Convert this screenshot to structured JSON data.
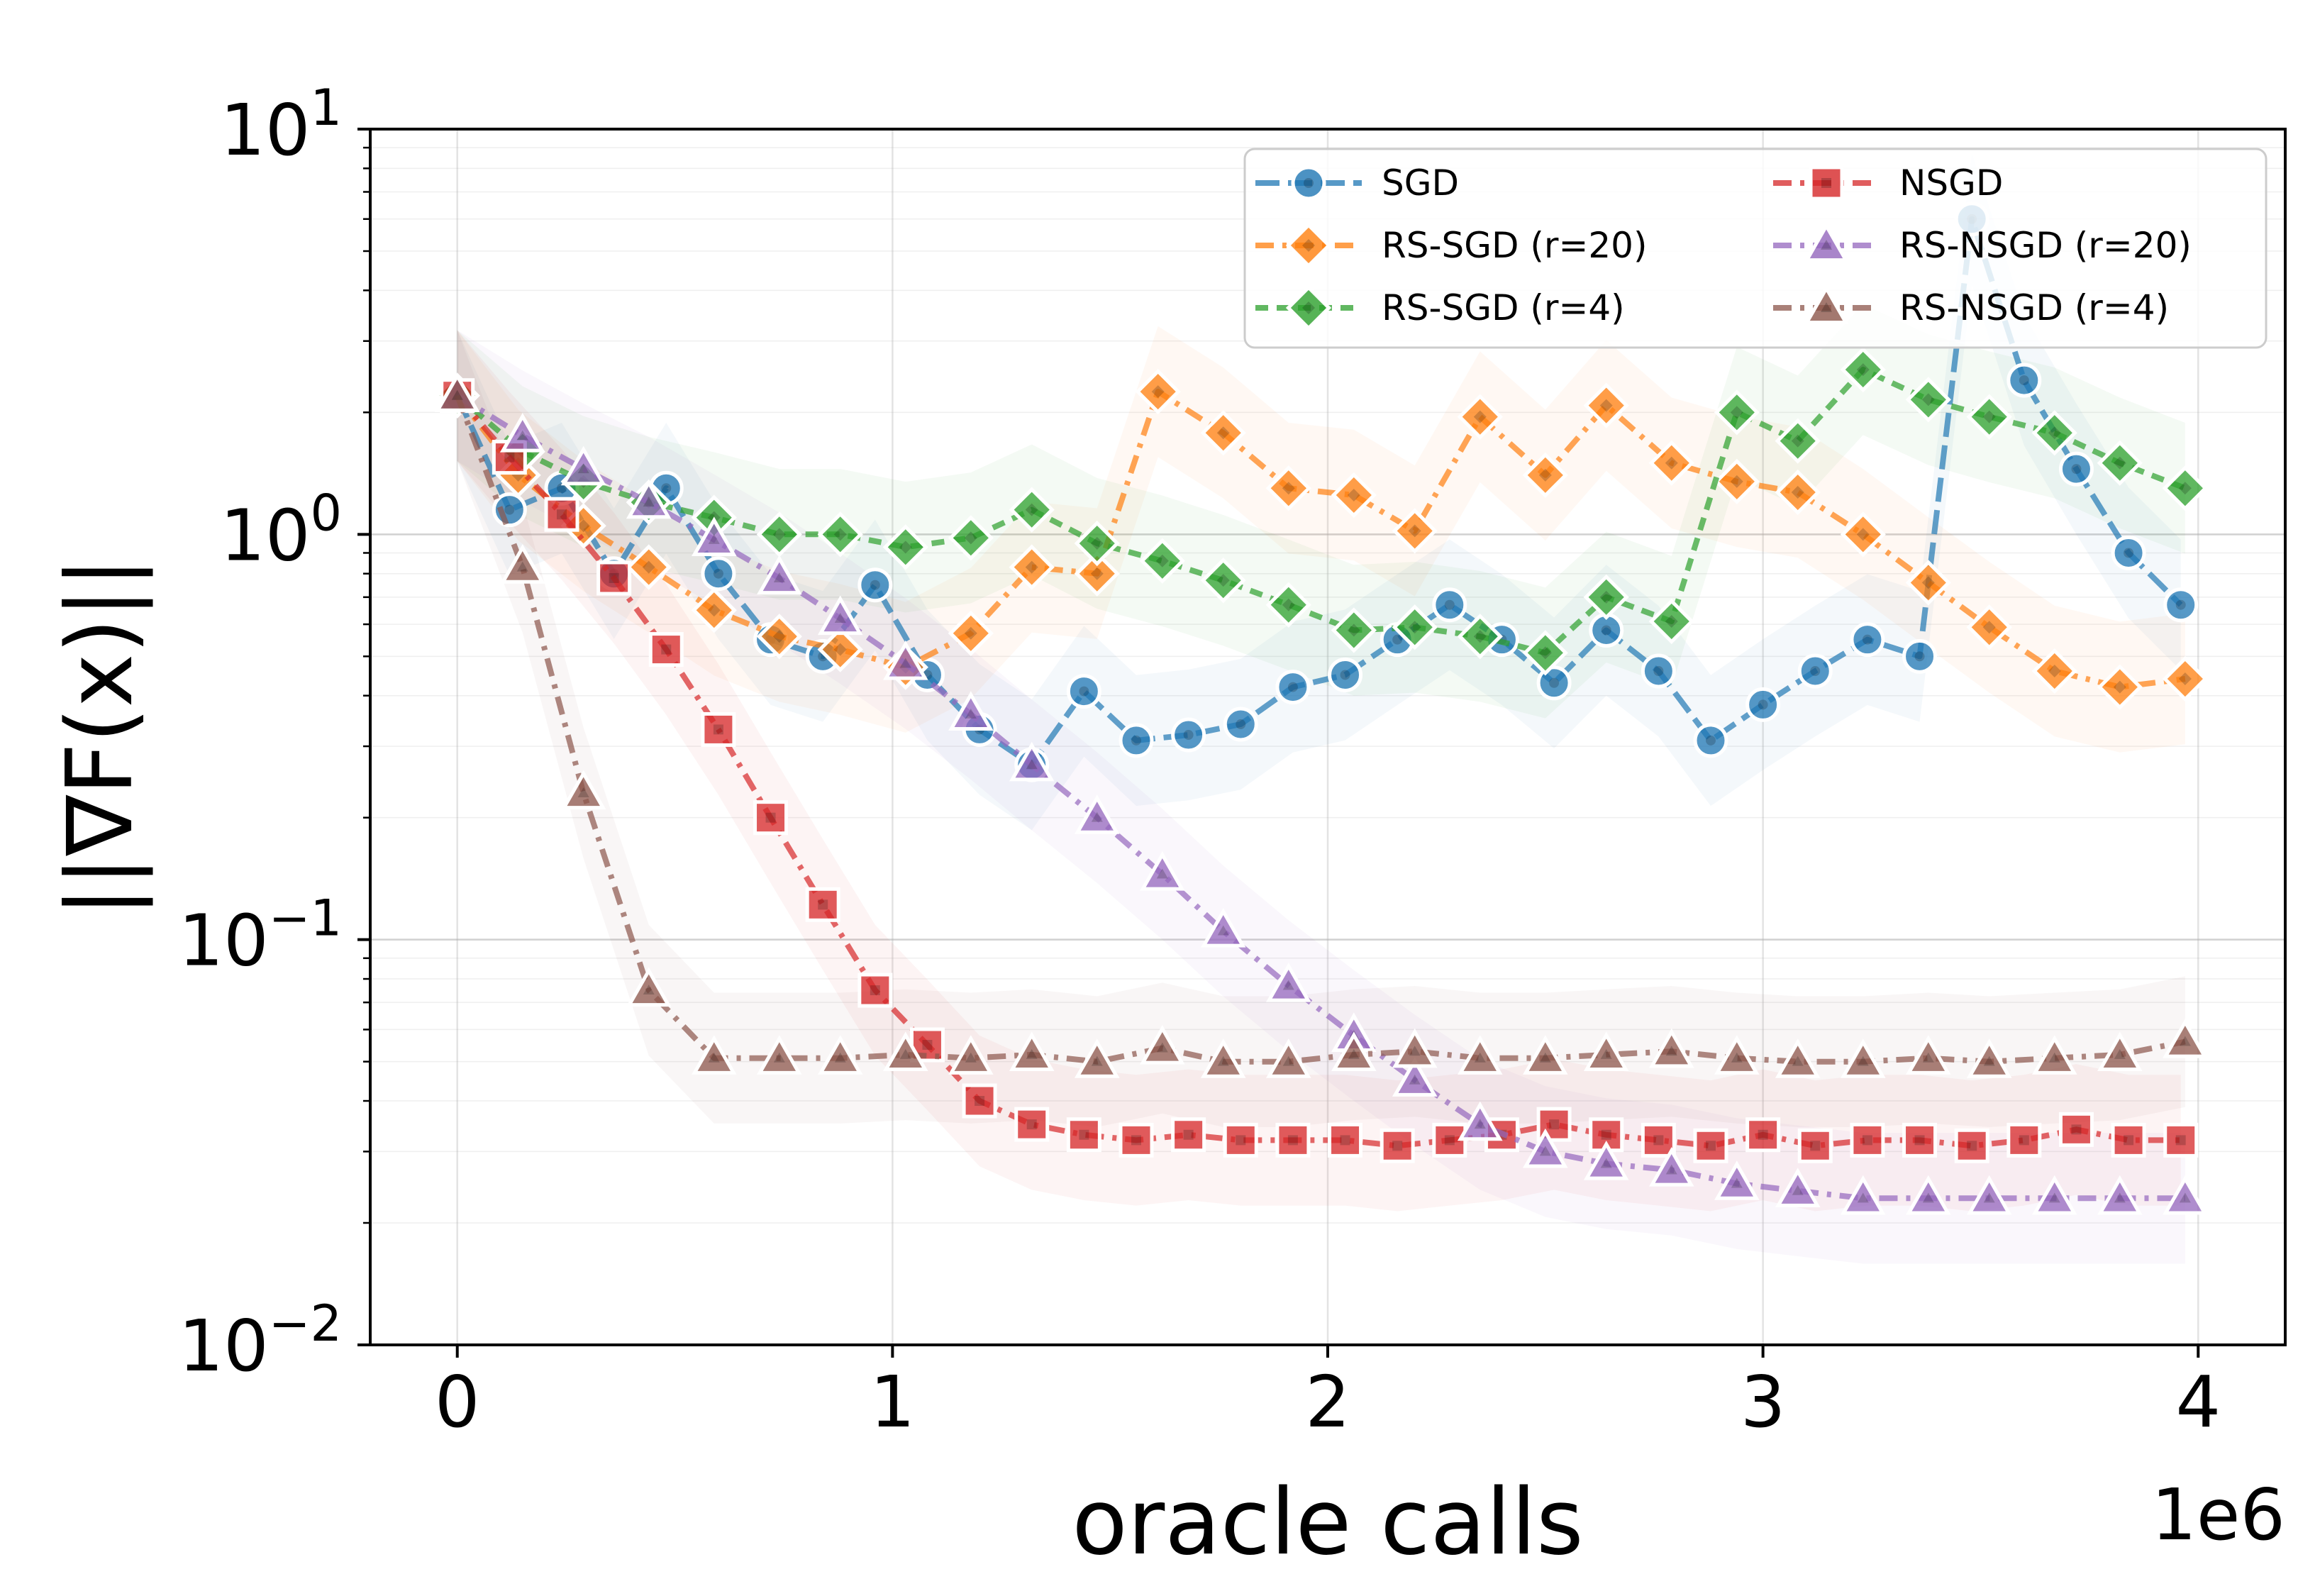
{
  "chart_data": {
    "type": "line",
    "title": "",
    "xlabel": "oracle calls",
    "ylabel": "||∇F(x)||",
    "x_offset_label": "1e6",
    "yscale": "log",
    "xlim": [
      -200000,
      4200000
    ],
    "ylim": [
      0.01,
      10
    ],
    "grid": true,
    "legend_position": "top-right",
    "x_ticks": [
      {
        "value": 0,
        "label": "0"
      },
      {
        "value": 1000000,
        "label": "1"
      },
      {
        "value": 2000000,
        "label": "2"
      },
      {
        "value": 3000000,
        "label": "3"
      },
      {
        "value": 4000000,
        "label": "4"
      }
    ],
    "y_ticks": [
      {
        "value": 0.01,
        "base": "10",
        "exp": "−2"
      },
      {
        "value": 0.1,
        "base": "10",
        "exp": "−1"
      },
      {
        "value": 1,
        "base": "10",
        "exp": "0"
      },
      {
        "value": 10,
        "base": "10",
        "exp": "1"
      }
    ],
    "series": [
      {
        "name": "SGD",
        "color": "#1f77b4",
        "marker": "circle",
        "dash": "long",
        "x": [
          0,
          120000,
          240000,
          360000,
          480000,
          600000,
          720000,
          840000,
          960000,
          1080000,
          1200000,
          1320000,
          1440000,
          1560000,
          1680000,
          1800000,
          1920000,
          2040000,
          2160000,
          2280000,
          2400000,
          2520000,
          2640000,
          2760000,
          2880000,
          3000000,
          3120000,
          3240000,
          3360000,
          3480000,
          3600000,
          3720000,
          3840000,
          3960000
        ],
        "values": [
          2.2,
          1.15,
          1.3,
          0.8,
          1.3,
          0.8,
          0.55,
          0.5,
          0.75,
          0.45,
          0.33,
          0.27,
          0.41,
          0.31,
          0.32,
          0.34,
          0.42,
          0.45,
          0.55,
          0.67,
          0.55,
          0.43,
          0.58,
          0.46,
          0.31,
          0.38,
          0.46,
          0.55,
          0.5,
          6.0,
          2.4,
          1.45,
          0.9,
          0.67
        ]
      },
      {
        "name": "RS-SGD (r=20)",
        "color": "#ff7f0e",
        "marker": "diamond",
        "dash": "dashdot",
        "x": [
          0,
          140000,
          290000,
          440000,
          590000,
          740000,
          880000,
          1030000,
          1180000,
          1320000,
          1470000,
          1610000,
          1760000,
          1910000,
          2060000,
          2200000,
          2350000,
          2500000,
          2640000,
          2790000,
          2940000,
          3080000,
          3230000,
          3380000,
          3520000,
          3670000,
          3820000,
          3970000
        ],
        "values": [
          2.2,
          1.4,
          1.05,
          0.83,
          0.65,
          0.56,
          0.52,
          0.47,
          0.57,
          0.83,
          0.8,
          2.25,
          1.78,
          1.3,
          1.25,
          1.02,
          1.95,
          1.4,
          2.08,
          1.5,
          1.35,
          1.27,
          1.0,
          0.76,
          0.59,
          0.46,
          0.42,
          0.44
        ]
      },
      {
        "name": "RS-SGD (r=4)",
        "color": "#2ca02c",
        "marker": "diamond",
        "dash": "dash",
        "x": [
          0,
          150000,
          290000,
          440000,
          590000,
          740000,
          880000,
          1030000,
          1180000,
          1320000,
          1470000,
          1620000,
          1760000,
          1910000,
          2060000,
          2200000,
          2350000,
          2500000,
          2640000,
          2790000,
          2940000,
          3080000,
          3230000,
          3380000,
          3520000,
          3670000,
          3820000,
          3970000
        ],
        "values": [
          2.2,
          1.6,
          1.35,
          1.2,
          1.1,
          1.0,
          1.0,
          0.93,
          0.98,
          1.15,
          0.95,
          0.86,
          0.77,
          0.67,
          0.58,
          0.59,
          0.56,
          0.51,
          0.7,
          0.61,
          2.0,
          1.7,
          2.55,
          2.15,
          1.95,
          1.78,
          1.5,
          1.3
        ]
      },
      {
        "name": "NSGD",
        "color": "#d62728",
        "marker": "square",
        "dash": "dashdot",
        "x": [
          0,
          120000,
          240000,
          360000,
          480000,
          600000,
          720000,
          840000,
          960000,
          1080000,
          1200000,
          1320000,
          1440000,
          1560000,
          1680000,
          1800000,
          1920000,
          2040000,
          2160000,
          2280000,
          2400000,
          2520000,
          2640000,
          2760000,
          2880000,
          3000000,
          3120000,
          3240000,
          3360000,
          3480000,
          3600000,
          3720000,
          3840000,
          3960000
        ],
        "values": [
          2.2,
          1.55,
          1.12,
          0.78,
          0.52,
          0.33,
          0.2,
          0.122,
          0.075,
          0.055,
          0.04,
          0.035,
          0.033,
          0.032,
          0.033,
          0.032,
          0.032,
          0.032,
          0.031,
          0.032,
          0.033,
          0.035,
          0.033,
          0.032,
          0.031,
          0.033,
          0.031,
          0.032,
          0.032,
          0.031,
          0.032,
          0.034,
          0.032,
          0.032
        ]
      },
      {
        "name": "RS-NSGD (r=20)",
        "color": "#9467bd",
        "marker": "triangle",
        "dash": "dashdot",
        "x": [
          0,
          150000,
          290000,
          440000,
          590000,
          740000,
          880000,
          1030000,
          1180000,
          1320000,
          1470000,
          1620000,
          1760000,
          1910000,
          2060000,
          2200000,
          2350000,
          2500000,
          2640000,
          2790000,
          2940000,
          3080000,
          3230000,
          3380000,
          3520000,
          3670000,
          3820000,
          3970000
        ],
        "values": [
          2.2,
          1.75,
          1.45,
          1.2,
          0.97,
          0.78,
          0.62,
          0.48,
          0.36,
          0.27,
          0.2,
          0.145,
          0.105,
          0.077,
          0.058,
          0.045,
          0.035,
          0.03,
          0.028,
          0.027,
          0.025,
          0.024,
          0.023,
          0.023,
          0.023,
          0.023,
          0.023,
          0.023
        ]
      },
      {
        "name": "RS-NSGD (r=4)",
        "color": "#8c564b",
        "marker": "triangle",
        "dash": "dashdot",
        "x": [
          0,
          150000,
          290000,
          440000,
          590000,
          740000,
          880000,
          1030000,
          1180000,
          1320000,
          1470000,
          1620000,
          1760000,
          1910000,
          2060000,
          2200000,
          2350000,
          2500000,
          2640000,
          2790000,
          2940000,
          3080000,
          3230000,
          3380000,
          3520000,
          3670000,
          3820000,
          3970000
        ],
        "values": [
          2.2,
          0.83,
          0.23,
          0.075,
          0.051,
          0.051,
          0.051,
          0.052,
          0.051,
          0.052,
          0.05,
          0.054,
          0.05,
          0.05,
          0.052,
          0.053,
          0.051,
          0.051,
          0.052,
          0.053,
          0.051,
          0.05,
          0.05,
          0.051,
          0.05,
          0.051,
          0.052,
          0.056
        ]
      }
    ]
  }
}
